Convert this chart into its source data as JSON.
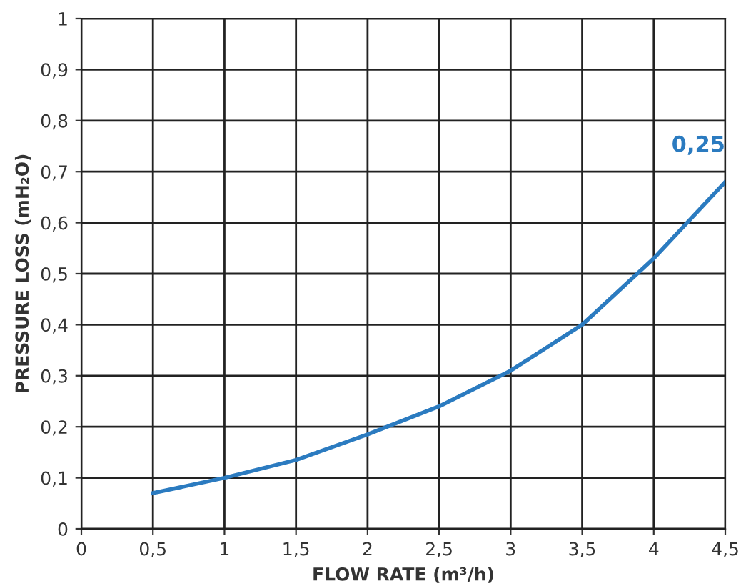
{
  "chart_data": {
    "type": "line",
    "xlabel": "FLOW RATE (m³/h)",
    "ylabel": "PRESSURE LOSS (mH₂O)",
    "x": [
      0.5,
      1,
      1.5,
      2,
      2.5,
      3,
      3.5,
      4,
      4.5
    ],
    "series": [
      {
        "name": "0,25",
        "color": "#2b7bc0",
        "values": [
          0.07,
          0.1,
          0.135,
          0.185,
          0.24,
          0.31,
          0.4,
          0.53,
          0.68
        ]
      }
    ],
    "xlim": [
      0,
      4.5
    ],
    "ylim": [
      0,
      1
    ],
    "xticks": [
      0,
      {
        "value": 0.5,
        "label": "0,5"
      },
      1,
      {
        "value": 1.5,
        "label": "1,5"
      },
      2,
      {
        "value": 2.5,
        "label": "2,5"
      },
      3,
      {
        "value": 3.5,
        "label": "3,5"
      },
      4,
      {
        "value": 4.5,
        "label": "4,5"
      }
    ],
    "yticks": [
      0,
      {
        "value": 0.1,
        "label": "0,1"
      },
      {
        "value": 0.2,
        "label": "0,2"
      },
      {
        "value": 0.3,
        "label": "0,3"
      },
      {
        "value": 0.4,
        "label": "0,4"
      },
      {
        "value": 0.5,
        "label": "0,5"
      },
      {
        "value": 0.6,
        "label": "0,6"
      },
      {
        "value": 0.7,
        "label": "0,7"
      },
      {
        "value": 0.8,
        "label": "0,8"
      },
      {
        "value": 0.9,
        "label": "0,9"
      },
      1
    ],
    "grid": true,
    "marker": "none",
    "line_style": "solid",
    "legend": false
  }
}
